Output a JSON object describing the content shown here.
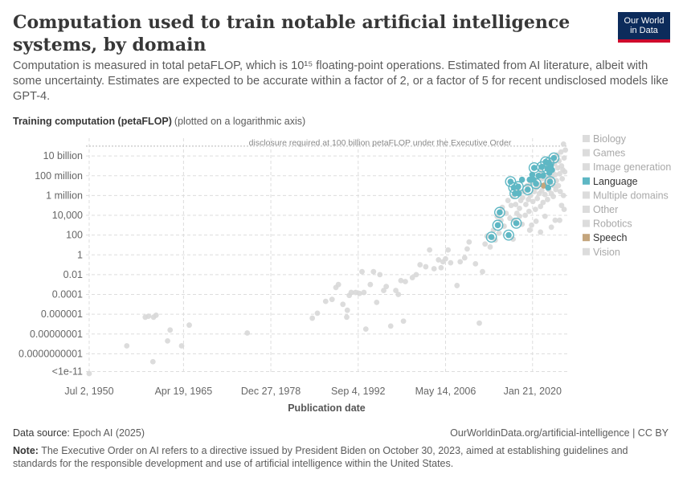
{
  "header": {
    "title": "Computation used to train notable artificial intelligence systems, by domain",
    "subtitle": "Computation is measured in total petaFLOP, which is 10¹⁵ floating-point operations. Estimated from AI literature, albeit with some uncertainty. Estimates are expected to be accurate within a factor of 2, or a factor of 5 for recent undisclosed models like GPT-4.",
    "logo_line1": "Our World",
    "logo_line2": "in Data"
  },
  "axis": {
    "y_title": "Training computation (petaFLOP)",
    "y_note": "(plotted on a logarithmic axis)",
    "x_title": "Publication date"
  },
  "footer": {
    "source_label": "Data source:",
    "source_text": "Epoch AI (2025)",
    "license": "OurWorldinData.org/artificial-intelligence | CC BY",
    "note_label": "Note:",
    "note_text": "The Executive Order on AI refers to a directive issued by President Biden on October 30, 2023, aimed at establishing guidelines and standards for the responsible development and use of artificial intelligence within the United States."
  },
  "colors": {
    "language": "#5eb7c4",
    "speech": "#c4a57d",
    "other": "#d8d8d8",
    "grid": "#dddddd"
  },
  "chart_data": {
    "type": "scatter",
    "title": "Computation used to train notable artificial intelligence systems, by domain",
    "xlabel": "Publication date",
    "ylabel": "Training computation (petaFLOP)",
    "yscale": "log",
    "xlim": [
      1950.0,
      2025.5
    ],
    "ylim": [
      -12,
      12
    ],
    "x_ticks": [
      {
        "value": 1950.5,
        "label": "Jul 2, 1950"
      },
      {
        "value": 1965.3,
        "label": "Apr 19, 1965"
      },
      {
        "value": 1979.0,
        "label": "Dec 27, 1978"
      },
      {
        "value": 1992.7,
        "label": "Sep 4, 1992"
      },
      {
        "value": 2006.4,
        "label": "May 14, 2006"
      },
      {
        "value": 2020.05,
        "label": "Jan 21, 2020"
      }
    ],
    "y_ticks": [
      {
        "exp": 10,
        "label": "10 billion"
      },
      {
        "exp": 8,
        "label": "100 million"
      },
      {
        "exp": 6,
        "label": "1 million"
      },
      {
        "exp": 4,
        "label": "10,000"
      },
      {
        "exp": 2,
        "label": "100"
      },
      {
        "exp": 0,
        "label": "1"
      },
      {
        "exp": -2,
        "label": "0.01"
      },
      {
        "exp": -4,
        "label": "0.0001"
      },
      {
        "exp": -6,
        "label": "0.000001"
      },
      {
        "exp": -8,
        "label": "0.00000001"
      },
      {
        "exp": -10,
        "label": "0.0000000001"
      },
      {
        "exp": -11.8,
        "label": "<1e-11"
      }
    ],
    "threshold": {
      "exp": 11,
      "label": "disclosure required at 100 billion petaFLOP under the Executive Order"
    },
    "legend": {
      "position": "right",
      "items": [
        {
          "name": "Biology",
          "highlight": false
        },
        {
          "name": "Games",
          "highlight": false
        },
        {
          "name": "Image generation",
          "highlight": false
        },
        {
          "name": "Language",
          "highlight": true,
          "color": "#5eb7c4"
        },
        {
          "name": "Multiple domains",
          "highlight": false
        },
        {
          "name": "Other",
          "highlight": false
        },
        {
          "name": "Robotics",
          "highlight": false
        },
        {
          "name": "Speech",
          "highlight": true,
          "color": "#c4a57d"
        },
        {
          "name": "Vision",
          "highlight": false
        }
      ]
    },
    "series": [
      {
        "name": "Language",
        "points": [
          [
            2013.6,
            1.8
          ],
          [
            2014.6,
            3.0
          ],
          [
            2014.9,
            4.3
          ],
          [
            2016.3,
            2.0
          ],
          [
            2017.5,
            3.2
          ],
          [
            2016.6,
            7.4
          ],
          [
            2017.1,
            6.8
          ],
          [
            2017.3,
            6.2
          ],
          [
            2017.8,
            6.9
          ],
          [
            2017.9,
            6.2
          ],
          [
            2018.4,
            7.6
          ],
          [
            2019.3,
            6.6
          ],
          [
            2019.6,
            7.6
          ],
          [
            2020.0,
            8.1
          ],
          [
            2020.2,
            7.6
          ],
          [
            2020.3,
            8.8
          ],
          [
            2020.6,
            7.2
          ],
          [
            2021.0,
            8.0
          ],
          [
            2021.5,
            8.9
          ],
          [
            2021.7,
            8.0
          ],
          [
            2022.1,
            9.4
          ],
          [
            2022.4,
            8.7
          ],
          [
            2022.6,
            9.3
          ],
          [
            2022.7,
            8.3
          ],
          [
            2022.8,
            7.4
          ],
          [
            2022.5,
            6.8
          ],
          [
            2023.4,
            9.8
          ],
          [
            2023.1,
            8.6
          ],
          [
            2022.9,
            9.0
          ]
        ],
        "circled": [
          [
            2013.6,
            1.8
          ],
          [
            2014.6,
            3.0
          ],
          [
            2014.9,
            4.3
          ],
          [
            2016.3,
            2.0
          ],
          [
            2017.5,
            3.2
          ],
          [
            2016.6,
            7.4
          ],
          [
            2017.1,
            6.8
          ],
          [
            2017.3,
            6.2
          ],
          [
            2017.8,
            6.9
          ],
          [
            2019.3,
            6.6
          ],
          [
            2020.3,
            8.8
          ],
          [
            2022.1,
            9.4
          ],
          [
            2023.4,
            9.8
          ],
          [
            2022.6,
            9.3
          ],
          [
            2022.8,
            7.4
          ],
          [
            2022.4,
            8.7
          ],
          [
            2021.5,
            8.9
          ],
          [
            2020.6,
            7.2
          ]
        ]
      },
      {
        "name": "Speech",
        "points": [
          [
            2021.8,
            7.0
          ]
        ]
      },
      {
        "name": "Other domains",
        "points": [
          [
            1950.5,
            -12.0
          ],
          [
            1956.4,
            -9.2
          ],
          [
            1959.3,
            -6.3
          ],
          [
            1959.8,
            -6.2
          ],
          [
            1960.6,
            -6.3
          ],
          [
            1961.0,
            -6.1
          ],
          [
            1960.5,
            -10.8
          ],
          [
            1962.8,
            -8.7
          ],
          [
            1963.2,
            -7.6
          ],
          [
            1965.0,
            -9.2
          ],
          [
            1966.2,
            -7.1
          ],
          [
            1975.3,
            -7.9
          ],
          [
            1985.5,
            -6.4
          ],
          [
            1986.3,
            -5.9
          ],
          [
            1987.6,
            -4.7
          ],
          [
            1988.6,
            -4.5
          ],
          [
            1989.2,
            -3.3
          ],
          [
            1989.6,
            -3.0
          ],
          [
            1990.3,
            -5.0
          ],
          [
            1990.9,
            -6.3
          ],
          [
            1991.0,
            -5.6
          ],
          [
            1991.3,
            -4.1
          ],
          [
            1991.6,
            -3.8
          ],
          [
            1992.3,
            -3.8
          ],
          [
            1992.9,
            -3.9
          ],
          [
            1993.6,
            -3.8
          ],
          [
            1993.3,
            -1.7
          ],
          [
            1993.9,
            -7.5
          ],
          [
            1994.6,
            -3.0
          ],
          [
            1995.1,
            -1.7
          ],
          [
            1995.6,
            -4.8
          ],
          [
            1996.1,
            -2.0
          ],
          [
            1996.7,
            -3.6
          ],
          [
            1997.1,
            -3.2
          ],
          [
            1997.8,
            -7.2
          ],
          [
            1998.6,
            -3.6
          ],
          [
            1999.0,
            -4.0
          ],
          [
            1999.4,
            -2.6
          ],
          [
            1999.8,
            -6.7
          ],
          [
            2000.1,
            -2.7
          ],
          [
            2001.2,
            -2.3
          ],
          [
            2001.8,
            -2.0
          ],
          [
            2002.4,
            -1.0
          ],
          [
            2003.3,
            -1.2
          ],
          [
            2003.9,
            0.5
          ],
          [
            2004.6,
            -1.4
          ],
          [
            2005.3,
            -0.5
          ],
          [
            2005.7,
            -1.3
          ],
          [
            2006.0,
            -0.7
          ],
          [
            2006.4,
            -0.4
          ],
          [
            2006.8,
            0.5
          ],
          [
            2007.2,
            -0.8
          ],
          [
            2008.2,
            -3.1
          ],
          [
            2008.7,
            -0.7
          ],
          [
            2009.4,
            -0.3
          ],
          [
            2009.8,
            0.6
          ],
          [
            2010.1,
            1.3
          ],
          [
            2011.1,
            -0.9
          ],
          [
            2011.7,
            -6.9
          ],
          [
            2012.2,
            -1.7
          ],
          [
            2012.6,
            1.1
          ],
          [
            2012.9,
            1.9
          ],
          [
            2013.4,
            0.8
          ],
          [
            2013.9,
            2.5
          ],
          [
            2014.2,
            1.5
          ],
          [
            2014.5,
            3.9
          ],
          [
            2014.8,
            2.2
          ],
          [
            2015.1,
            3.5
          ],
          [
            2015.3,
            4.8
          ],
          [
            2015.6,
            2.9
          ],
          [
            2015.9,
            4.2
          ],
          [
            2016.2,
            5.5
          ],
          [
            2016.5,
            3.7
          ],
          [
            2016.7,
            5.0
          ],
          [
            2017.0,
            5.9
          ],
          [
            2017.2,
            3.5
          ],
          [
            2017.4,
            5.1
          ],
          [
            2017.6,
            4.2
          ],
          [
            2017.8,
            6.5
          ],
          [
            2018.0,
            4.7
          ],
          [
            2018.2,
            5.5
          ],
          [
            2018.4,
            3.1
          ],
          [
            2018.5,
            5.8
          ],
          [
            2018.7,
            6.4
          ],
          [
            2018.9,
            4.0
          ],
          [
            2019.0,
            5.1
          ],
          [
            2019.2,
            7.0
          ],
          [
            2019.4,
            5.6
          ],
          [
            2019.5,
            4.4
          ],
          [
            2019.7,
            6.0
          ],
          [
            2019.8,
            7.2
          ],
          [
            2019.9,
            3.0
          ],
          [
            2020.1,
            5.4
          ],
          [
            2020.3,
            6.4
          ],
          [
            2020.4,
            7.5
          ],
          [
            2020.5,
            4.6
          ],
          [
            2020.7,
            6.8
          ],
          [
            2020.8,
            5.7
          ],
          [
            2020.9,
            8.0
          ],
          [
            2021.1,
            6.2
          ],
          [
            2021.2,
            7.1
          ],
          [
            2021.3,
            4.9
          ],
          [
            2021.4,
            8.4
          ],
          [
            2021.5,
            6.5
          ],
          [
            2021.6,
            7.7
          ],
          [
            2021.7,
            5.3
          ],
          [
            2021.9,
            8.9
          ],
          [
            2022.0,
            6.1
          ],
          [
            2022.2,
            7.3
          ],
          [
            2022.3,
            9.1
          ],
          [
            2022.4,
            5.6
          ],
          [
            2022.5,
            8.0
          ],
          [
            2022.6,
            6.6
          ],
          [
            2022.7,
            7.6
          ],
          [
            2022.9,
            9.6
          ],
          [
            2023.0,
            6.2
          ],
          [
            2023.1,
            7.9
          ],
          [
            2023.2,
            8.5
          ],
          [
            2023.3,
            5.9
          ],
          [
            2023.4,
            7.0
          ],
          [
            2023.5,
            9.2
          ],
          [
            2023.6,
            8.1
          ],
          [
            2023.7,
            6.6
          ],
          [
            2023.8,
            7.5
          ],
          [
            2023.9,
            10.1
          ],
          [
            2024.0,
            8.8
          ],
          [
            2024.1,
            7.0
          ],
          [
            2024.2,
            9.5
          ],
          [
            2024.3,
            8.2
          ],
          [
            2024.4,
            6.4
          ],
          [
            2024.5,
            10.4
          ],
          [
            2024.6,
            9.0
          ],
          [
            2024.7,
            7.7
          ],
          [
            2024.8,
            8.6
          ],
          [
            2024.9,
            11.2
          ],
          [
            2025.0,
            9.8
          ],
          [
            2025.1,
            8.4
          ],
          [
            2025.2,
            10.6
          ],
          [
            2024.9,
            6.0
          ],
          [
            2023.6,
            3.5
          ],
          [
            2022.0,
            3.9
          ],
          [
            2020.6,
            3.4
          ],
          [
            2018.0,
            3.9
          ],
          [
            2017.0,
            1.6
          ],
          [
            2019.6,
            2.5
          ],
          [
            2021.3,
            2.3
          ],
          [
            2023.0,
            2.8
          ],
          [
            2024.3,
            3.5
          ],
          [
            2025.0,
            4.6
          ],
          [
            2024.6,
            5.0
          ]
        ]
      }
    ]
  }
}
